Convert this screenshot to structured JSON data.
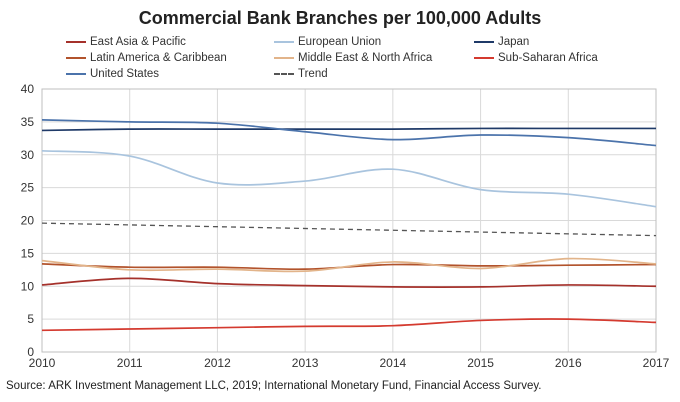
{
  "chart_data": {
    "type": "line",
    "title": "Commercial Bank Branches per 100,000 Adults",
    "xlabel": "",
    "ylabel": "",
    "x": [
      2010,
      2011,
      2012,
      2013,
      2014,
      2015,
      2016,
      2017
    ],
    "x_tick_labels": [
      "2010",
      "2011",
      "2012",
      "2013",
      "2014",
      "2015",
      "2016",
      "2017"
    ],
    "ylim": [
      0,
      40
    ],
    "y_ticks": [
      0,
      5,
      10,
      15,
      20,
      25,
      30,
      35,
      40
    ],
    "y_tick_labels": [
      "0",
      "5",
      "10",
      "15",
      "20",
      "25",
      "30",
      "35",
      "40"
    ],
    "grid": true,
    "legend_placement": "top",
    "series": [
      {
        "name": "East Asia & Pacific",
        "color": "#a5312b",
        "dashed": false,
        "values": [
          10.2,
          11.2,
          10.4,
          10.1,
          9.9,
          9.9,
          10.2,
          10.0
        ]
      },
      {
        "name": "European Union",
        "color": "#a9c4de",
        "dashed": false,
        "values": [
          30.6,
          29.8,
          25.7,
          26.0,
          27.8,
          24.7,
          24.0,
          22.1
        ]
      },
      {
        "name": "Japan",
        "color": "#1f3a68",
        "dashed": false,
        "values": [
          33.7,
          33.9,
          33.9,
          33.9,
          33.9,
          34.0,
          34.0,
          34.0
        ]
      },
      {
        "name": "Latin America & Caribbean",
        "color": "#b2532c",
        "dashed": false,
        "values": [
          13.4,
          12.9,
          12.9,
          12.6,
          13.3,
          13.1,
          13.2,
          13.3
        ]
      },
      {
        "name": "Middle East & North Africa",
        "color": "#e2b48a",
        "dashed": false,
        "values": [
          13.9,
          12.5,
          12.6,
          12.3,
          13.7,
          12.7,
          14.2,
          13.4
        ]
      },
      {
        "name": "Sub-Saharan Africa",
        "color": "#d43a2f",
        "dashed": false,
        "values": [
          3.3,
          3.5,
          3.7,
          3.9,
          4.0,
          4.8,
          5.0,
          4.5
        ]
      },
      {
        "name": "United States",
        "color": "#4b73ab",
        "dashed": false,
        "values": [
          35.3,
          35.0,
          34.8,
          33.5,
          32.3,
          33.0,
          32.6,
          31.4
        ]
      },
      {
        "name": "Trend",
        "color": "#555555",
        "dashed": true,
        "values": [
          19.6,
          19.3,
          19.0,
          18.8,
          18.5,
          18.2,
          18.0,
          17.7
        ]
      }
    ]
  },
  "source": "Source: ARK Investment Management LLC, 2019; International Monetary Fund, Financial Access Survey."
}
